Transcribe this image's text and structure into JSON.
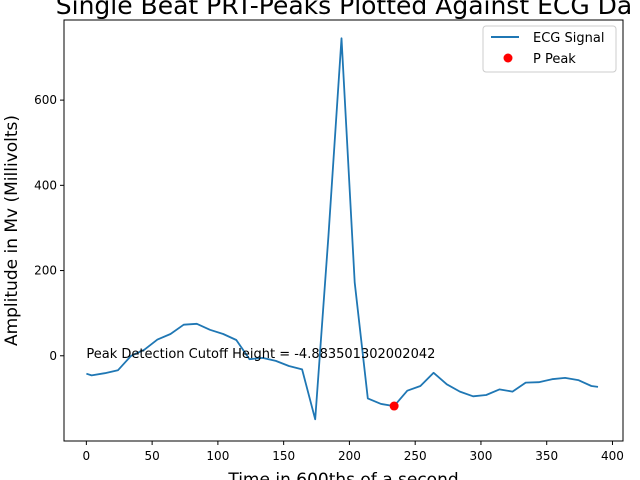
{
  "chart_data": {
    "type": "line",
    "title": "Single Beat PRT-Peaks Plotted Against ECG Da",
    "xlabel": "Time in 600ths of a second",
    "ylabel": "Amplitude in Mv (Millivolts)",
    "xlim": [
      -17,
      408
    ],
    "ylim": [
      -200,
      788
    ],
    "xticks": [
      0,
      50,
      100,
      150,
      200,
      250,
      300,
      350,
      400
    ],
    "yticks": [
      0,
      200,
      400,
      600
    ],
    "grid": false,
    "legend_position": "top-right",
    "series": [
      {
        "name": "ECG Signal",
        "color": "#1f77b4",
        "x": [
          0,
          4,
          14,
          24,
          34,
          44,
          54,
          64,
          74,
          84,
          94,
          104,
          114,
          124,
          134,
          144,
          154,
          164,
          174,
          184,
          194,
          204,
          214,
          224,
          234,
          244,
          254,
          264,
          274,
          284,
          294,
          304,
          314,
          324,
          334,
          344,
          354,
          364,
          374,
          384,
          389
        ],
        "y": [
          -42,
          -46,
          -41,
          -34,
          0,
          14,
          38,
          51,
          73,
          75,
          61,
          51,
          37,
          -8,
          -5,
          -12,
          -24,
          -32,
          -149,
          280,
          745,
          172,
          -100,
          -113,
          -118,
          -82,
          -71,
          -40,
          -67,
          -84,
          -95,
          -92,
          -79,
          -84,
          -63,
          -62,
          -55,
          -52,
          -57,
          -71,
          -73
        ]
      },
      {
        "name": "P Peak",
        "color": "#ff0000",
        "marker": "circle",
        "x": [
          234
        ],
        "y": [
          -118
        ]
      }
    ],
    "annotations": [
      {
        "text": "Peak Detection Cutoff Height = -4.883501302002042",
        "x": 0,
        "y": -4.88
      }
    ]
  }
}
